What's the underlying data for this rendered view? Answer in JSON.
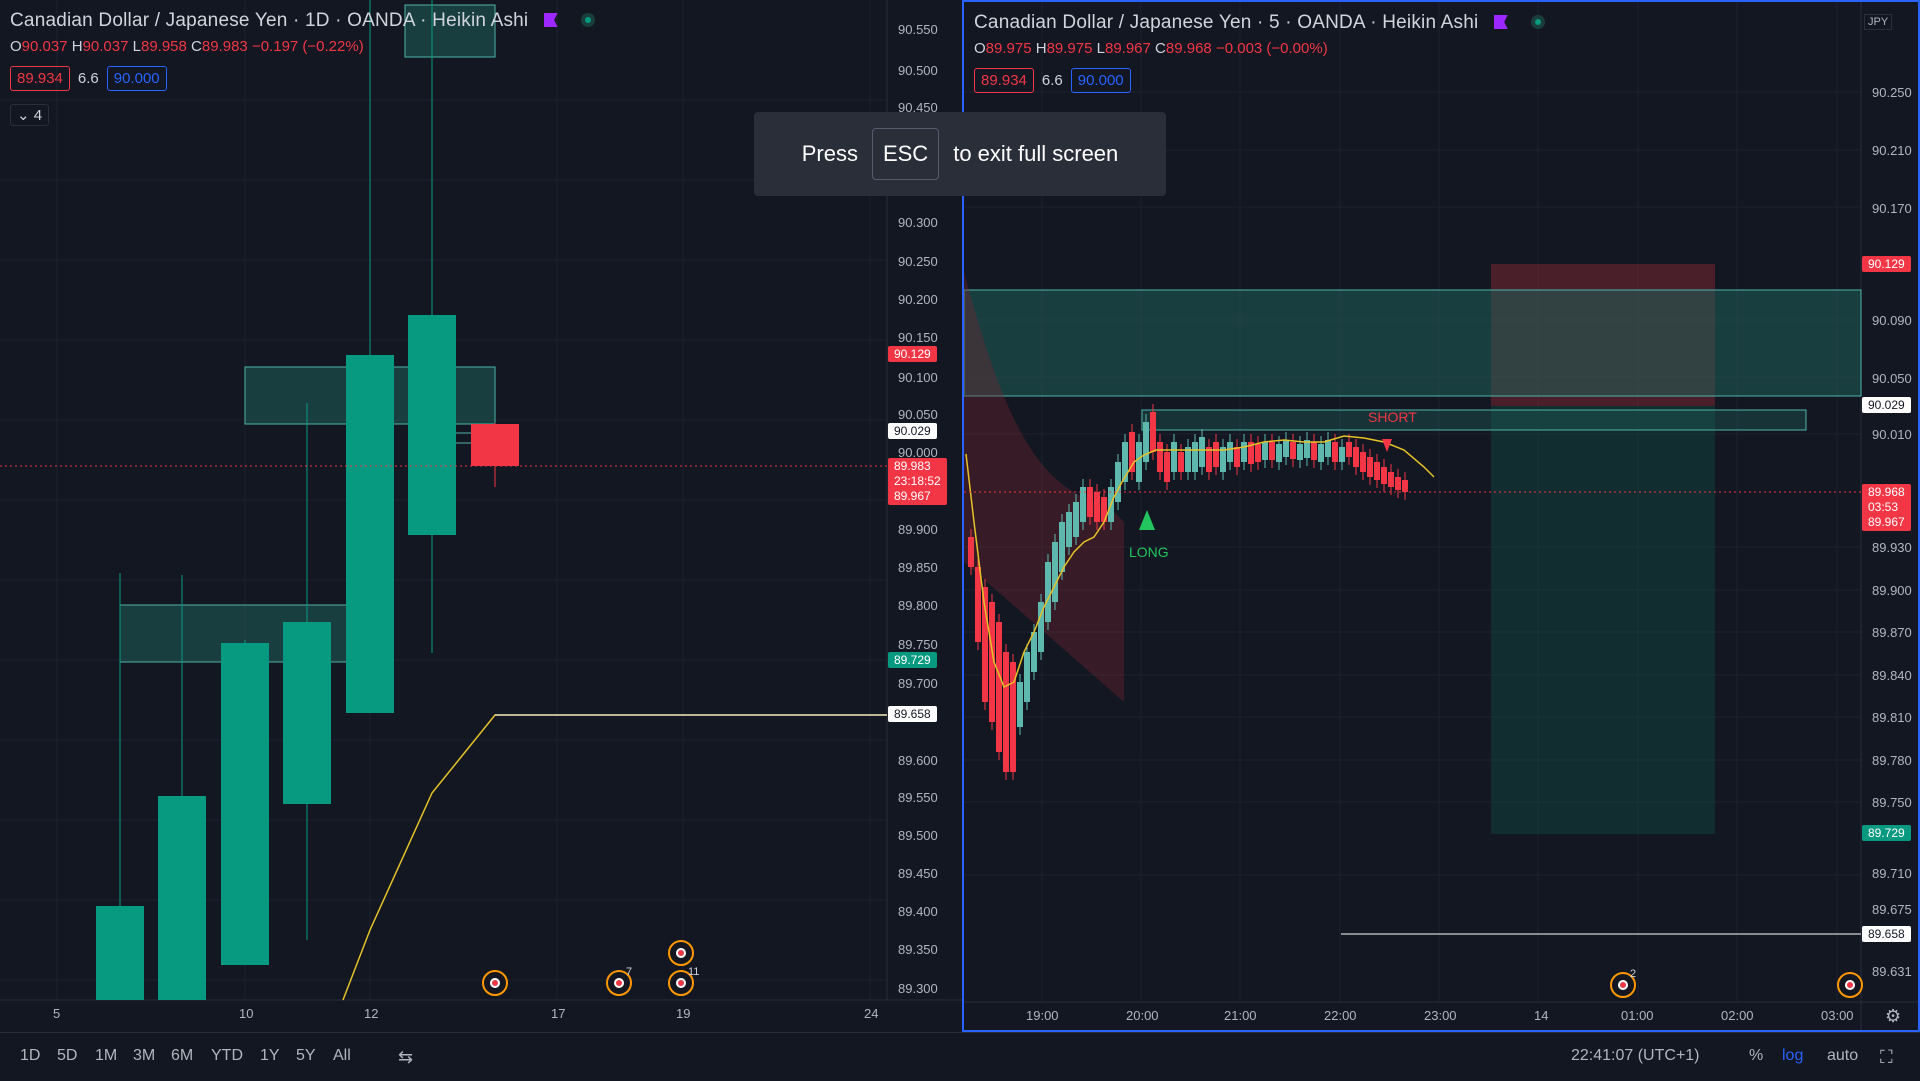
{
  "left_pane": {
    "symbol": "Canadian Dollar / Japanese Yen · 1D · OANDA · Heikin Ashi",
    "ohlc": {
      "o_label": "O",
      "o": "90.037",
      "h_label": "H",
      "h": "90.037",
      "l_label": "L",
      "l": "89.958",
      "c_label": "C",
      "c": "89.983",
      "change": "−0.197 (−0.22%)"
    },
    "bid": "89.934",
    "spread": "6.6",
    "ask": "90.000",
    "collapse_count": "4",
    "price_axis": [
      "90.550",
      "90.500",
      "90.450",
      "90.300",
      "90.250",
      "90.200",
      "90.150",
      "90.100",
      "90.050",
      "90.000",
      "89.900",
      "89.850",
      "89.800",
      "89.750",
      "89.700",
      "89.600",
      "89.550",
      "89.500",
      "89.450",
      "89.400",
      "89.350",
      "89.300"
    ],
    "tags": {
      "red_top": "90.129",
      "white": "90.029",
      "cur1": "89.983",
      "countdown": "23:18:52",
      "cur2": "89.967",
      "green": "89.729",
      "white2": "89.658"
    },
    "time_axis": [
      "5",
      "10",
      "12",
      "17",
      "19",
      "24"
    ],
    "event_counts": [
      "7",
      "11"
    ]
  },
  "right_pane": {
    "symbol": "Canadian Dollar / Japanese Yen · 5 · OANDA · Heikin Ashi",
    "ohlc": {
      "o_label": "O",
      "o": "89.975",
      "h_label": "H",
      "h": "89.975",
      "l_label": "L",
      "l": "89.967",
      "c_label": "C",
      "c": "89.968",
      "change": "−0.003 (−0.00%)"
    },
    "bid": "89.934",
    "spread": "6.6",
    "ask": "90.000",
    "currency": "JPY",
    "price_axis": [
      "90.250",
      "90.210",
      "90.170",
      "90.090",
      "90.050",
      "90.010",
      "89.930",
      "89.900",
      "89.870",
      "89.840",
      "89.810",
      "89.780",
      "89.750",
      "89.710",
      "89.675",
      "89.631"
    ],
    "tags": {
      "red_top": "90.129",
      "white": "90.029",
      "cur1": "89.968",
      "countdown": "03:53",
      "cur2": "89.967",
      "green": "89.729",
      "white2": "89.658"
    },
    "time_axis": [
      "19:00",
      "20:00",
      "21:00",
      "22:00",
      "23:00",
      "14",
      "01:00",
      "02:00",
      "03:00"
    ],
    "labels": {
      "long": "LONG",
      "short": "SHORT"
    },
    "event_counts": [
      "2"
    ]
  },
  "toast": {
    "press": "Press",
    "key": "ESC",
    "rest": "to exit full screen"
  },
  "bottom": {
    "timeframes": [
      "1D",
      "5D",
      "1M",
      "3M",
      "6M",
      "YTD",
      "1Y",
      "5Y",
      "All"
    ],
    "clock": "22:41:07 (UTC+1)",
    "percent": "%",
    "log": "log",
    "auto": "auto"
  },
  "colors": {
    "up": "#089981",
    "down": "#f23645",
    "bg": "#131722",
    "accent": "#2962ff",
    "ma": "#e6c229"
  }
}
